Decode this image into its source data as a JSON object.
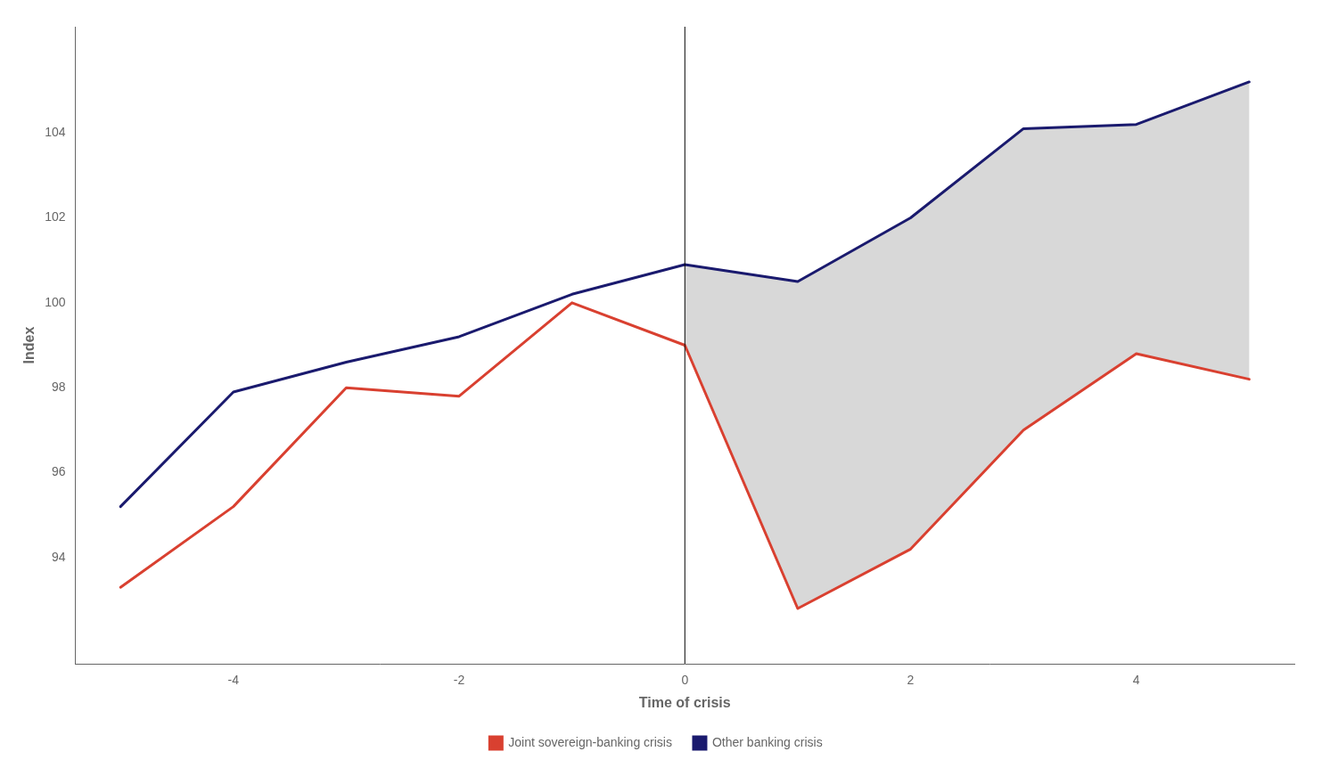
{
  "chart_data": {
    "type": "line",
    "x": [
      -5,
      -4,
      -3,
      -2,
      -1,
      0,
      1,
      2,
      3,
      4,
      5
    ],
    "series": [
      {
        "name": "Joint sovereign-banking crisis",
        "color": "#d94030",
        "values": [
          93.3,
          95.2,
          98.0,
          97.8,
          100.0,
          99.0,
          92.8,
          94.2,
          97.0,
          98.8,
          98.2
        ]
      },
      {
        "name": "Other banking crisis",
        "color": "#1a1a6e",
        "values": [
          95.2,
          97.9,
          98.6,
          99.2,
          100.2,
          100.9,
          100.5,
          102.0,
          104.1,
          104.2,
          105.2
        ]
      }
    ],
    "xlabel": "Time of crisis",
    "ylabel": "Index",
    "xlim": [
      -5.4,
      5.4
    ],
    "ylim": [
      91.5,
      106.5
    ],
    "xticks": [
      -4,
      -2,
      0,
      2,
      4
    ],
    "yticks": [
      94,
      96,
      98,
      100,
      102,
      104
    ],
    "grid": false,
    "legend": "bottom",
    "color": "#d8d8d8",
    "vline_x": 0
  }
}
